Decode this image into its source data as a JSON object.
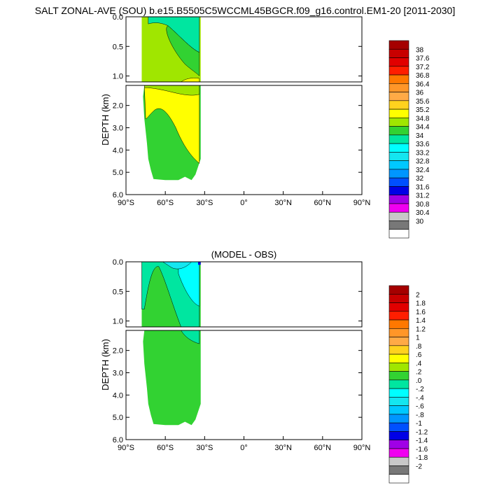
{
  "title": "SALT ZONAL-AVE (SOU) b.e15.B5505C5WCCML45BGCR.f09_g16.control.EM1-20 [2011-2030]",
  "chart_data": [
    {
      "type": "heatmap",
      "title": "",
      "ylabel": "DEPTH (km)",
      "x_ticks": [
        "90°S",
        "60°S",
        "30°S",
        "0°",
        "30°N",
        "60°N",
        "90°N"
      ],
      "x_values": [
        -90,
        -60,
        -30,
        0,
        30,
        60,
        90
      ],
      "upper_y_ticks": [
        "0.0",
        "0.5",
        "1.0"
      ],
      "upper_y_values": [
        0,
        0.5,
        1.0
      ],
      "lower_y_ticks": [
        "2.0",
        "3.0",
        "4.0",
        "5.0",
        "6.0"
      ],
      "lower_y_values": [
        2,
        3,
        4,
        5,
        6
      ],
      "upper_ylim": [
        0,
        1.1
      ],
      "lower_ylim": [
        1.1,
        6.0
      ],
      "xlim": [
        -90,
        90
      ],
      "ocean_extent": {
        "lat_south": -78,
        "lat_north": -33,
        "bottom_depth": [
          [
            -78,
            1.0
          ],
          [
            -77,
            1.6
          ],
          [
            -76,
            2.6
          ],
          [
            -74,
            3.7
          ],
          [
            -73,
            4.4
          ],
          [
            -71,
            4.9
          ],
          [
            -69,
            5.3
          ],
          [
            -60,
            5.35
          ],
          [
            -50,
            5.35
          ],
          [
            -45,
            5.2
          ],
          [
            -40,
            5.35
          ],
          [
            -37,
            5.1
          ],
          [
            -33,
            4.4
          ]
        ]
      },
      "colorbar": {
        "labels": [
          "38",
          "37.6",
          "37.2",
          "36.8",
          "36.4",
          "36",
          "35.6",
          "35.2",
          "34.8",
          "34.4",
          "34",
          "33.6",
          "33.2",
          "32.8",
          "32.4",
          "32",
          "31.6",
          "31.2",
          "30.8",
          "30.4",
          "30"
        ],
        "colors": [
          "#a50000",
          "#c80000",
          "#e10000",
          "#ff1e00",
          "#ff7800",
          "#ff9628",
          "#ffaa46",
          "#ffd21e",
          "#ffff00",
          "#a0e600",
          "#32d232",
          "#00e6a0",
          "#00ffff",
          "#14e6f0",
          "#00c8ff",
          "#0096ff",
          "#0050ff",
          "#0000e6",
          "#a000e6",
          "#f000f0",
          "#c8c8c8",
          "#787878",
          "#ffffff"
        ]
      },
      "regions": [
        {
          "value_band": "34.4-34.8",
          "color": "#a0e600",
          "description": "upper water column south of 60°S and intermediate depths"
        },
        {
          "value_band": "34.8-35.2",
          "color": "#ffff00",
          "description": "deep water 1.1–5 km north of 60°S"
        },
        {
          "value_band": "34-34.4",
          "color": "#32d232",
          "description": "bottom water near Antarctica and abyss"
        },
        {
          "value_band": "33.6-34",
          "color": "#00e6a0",
          "description": "surface layer 0–0.2 km"
        }
      ]
    },
    {
      "type": "heatmap",
      "title": "(MODEL - OBS)",
      "ylabel": "DEPTH (km)",
      "x_ticks": [
        "90°S",
        "60°S",
        "30°S",
        "0°",
        "30°N",
        "60°N",
        "90°N"
      ],
      "x_values": [
        -90,
        -60,
        -30,
        0,
        30,
        60,
        90
      ],
      "upper_y_ticks": [
        "0.0",
        "0.5",
        "1.0"
      ],
      "upper_y_values": [
        0,
        0.5,
        1.0
      ],
      "lower_y_ticks": [
        "2.0",
        "3.0",
        "4.0",
        "5.0",
        "6.0"
      ],
      "lower_y_values": [
        2,
        3,
        4,
        5,
        6
      ],
      "upper_ylim": [
        0,
        1.1
      ],
      "lower_ylim": [
        1.1,
        6.0
      ],
      "xlim": [
        -90,
        90
      ],
      "colorbar": {
        "labels": [
          "2",
          "1.8",
          "1.6",
          "1.4",
          "1.2",
          "1",
          ".8",
          ".6",
          ".4",
          ".2",
          ".0",
          "-.2",
          "-.4",
          "-.6",
          "-.8",
          "-1",
          "-1.2",
          "-1.4",
          "-1.6",
          "-1.8",
          "-2"
        ],
        "colors": [
          "#a50000",
          "#c80000",
          "#e10000",
          "#ff1e00",
          "#ff7800",
          "#ff9628",
          "#ffaa46",
          "#ffd21e",
          "#ffff00",
          "#a0e600",
          "#32d232",
          "#00e6a0",
          "#00ffff",
          "#14e6f0",
          "#00c8ff",
          "#0096ff",
          "#0050ff",
          "#0000e6",
          "#a000e6",
          "#f000f0",
          "#c8c8c8",
          "#787878",
          "#ffffff"
        ]
      },
      "regions": [
        {
          "value_band": "0-0.2",
          "color": "#32d232",
          "description": "most of the water column"
        },
        {
          "value_band": "-0.2-0",
          "color": "#00e6a0",
          "description": "upper 1.1 km north of 70°S"
        },
        {
          "value_band": "-0.4--0.2",
          "color": "#00ffff",
          "description": "upper ocean near 45–35°S"
        },
        {
          "value_band": "-0.6--0.4",
          "color": "#14e6f0",
          "description": "near surface 0–0.3 km"
        }
      ]
    }
  ]
}
